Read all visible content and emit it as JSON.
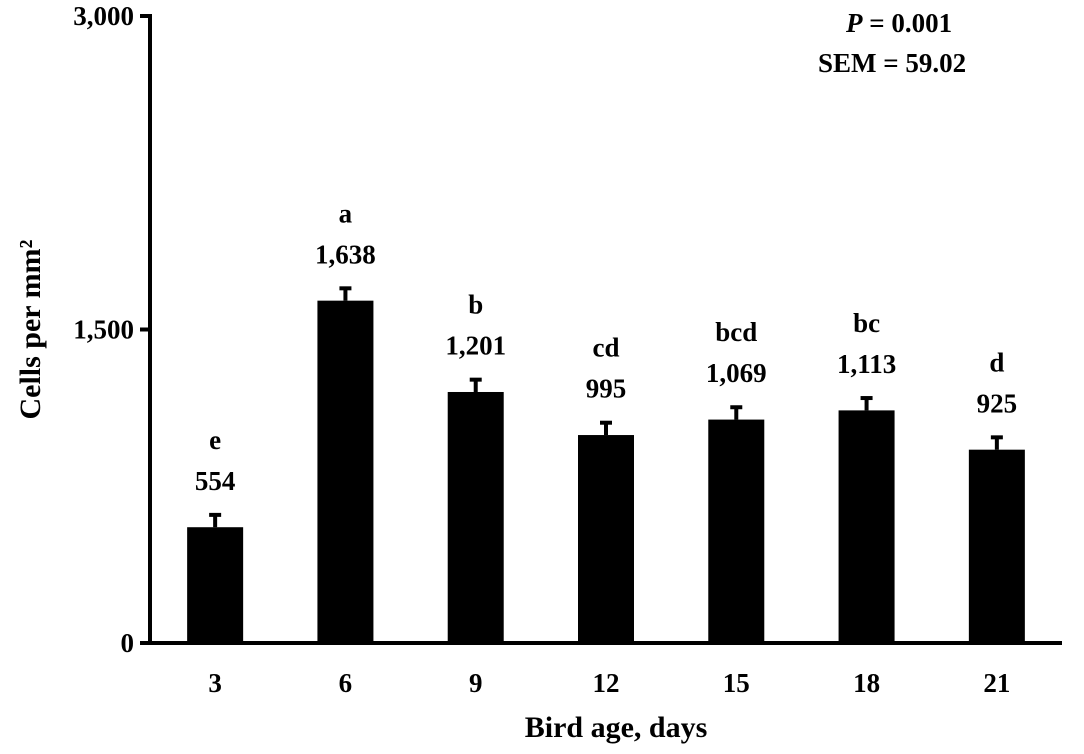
{
  "chart_data": {
    "type": "bar",
    "categories": [
      "3",
      "6",
      "9",
      "12",
      "15",
      "18",
      "21"
    ],
    "values": [
      554,
      1638,
      1201,
      995,
      1069,
      1113,
      925
    ],
    "value_labels": [
      "554",
      "1,638",
      "1,201",
      "995",
      "1,069",
      "1,113",
      "925"
    ],
    "significance_letters": [
      "e",
      "a",
      "b",
      "cd",
      "bcd",
      "bc",
      "d"
    ],
    "error": 59.02,
    "xlabel": "Bird age, days",
    "ylabel": "Cells per mm²",
    "ylim": [
      0,
      3000
    ],
    "yticks": [
      0,
      1500,
      3000
    ],
    "ytick_labels": [
      "0",
      "1,500",
      "3,000"
    ],
    "grid": false,
    "bar_color": "#000000",
    "annotation": {
      "p_symbol": "P",
      "p_text": " = 0.001",
      "sem_text": "SEM = 59.02"
    }
  }
}
